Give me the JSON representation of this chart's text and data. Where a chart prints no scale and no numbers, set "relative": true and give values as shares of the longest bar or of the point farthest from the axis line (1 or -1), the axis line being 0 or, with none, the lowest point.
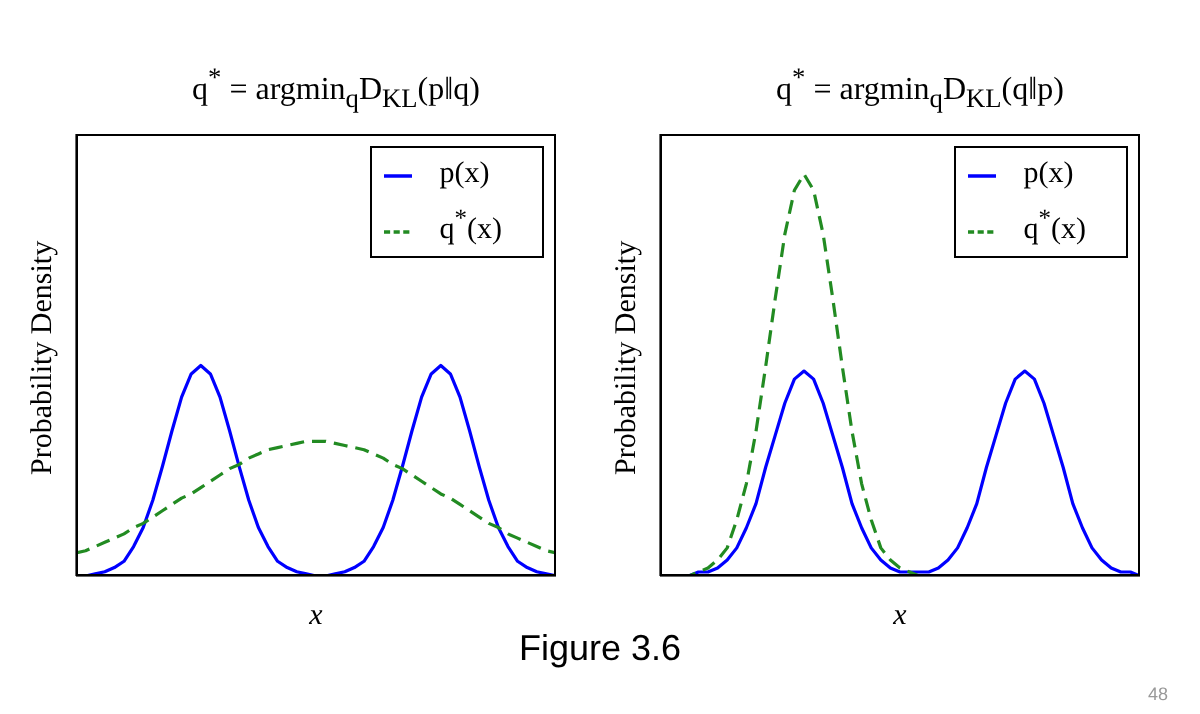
{
  "chart_data": [
    {
      "type": "line",
      "title": "q$^{*}$ = argmin$_{q}$D$_{KL}$(p‖q)",
      "xlabel": "x",
      "ylabel": "Probability Density",
      "relative": true,
      "legend": "top right",
      "categories": [
        null,
        null,
        null,
        null,
        null,
        null,
        null,
        null,
        null,
        null,
        null,
        null,
        null,
        null,
        null,
        null,
        null,
        null,
        null,
        null,
        null,
        null,
        null,
        null,
        null,
        null,
        null,
        null,
        null,
        null,
        null,
        null,
        null,
        null,
        null,
        null,
        null,
        null,
        null,
        null,
        null,
        null,
        null,
        null,
        null,
        null,
        null,
        null,
        null,
        null,
        null
      ],
      "series": [
        {
          "name": "p(x)",
          "color": "#0000ff",
          "line_style": "solid",
          "values": [
            0,
            0,
            0.01,
            0.02,
            0.04,
            0.07,
            0.14,
            0.23,
            0.36,
            0.52,
            0.69,
            0.85,
            0.96,
            1,
            0.96,
            0.85,
            0.69,
            0.52,
            0.36,
            0.23,
            0.14,
            0.07,
            0.04,
            0.02,
            0.01,
            0,
            0,
            0.01,
            0.02,
            0.04,
            0.07,
            0.14,
            0.23,
            0.36,
            0.52,
            0.69,
            0.85,
            0.96,
            1,
            0.96,
            0.85,
            0.69,
            0.52,
            0.36,
            0.23,
            0.14,
            0.07,
            0.04,
            0.02,
            0.01,
            0
          ]
        },
        {
          "name": "q$^{*}$(x)",
          "color": "#228b22",
          "line_style": "dashed",
          "values": [
            0.11,
            0.12,
            0.14,
            0.16,
            0.18,
            0.2,
            0.23,
            0.25,
            0.28,
            0.31,
            0.34,
            0.37,
            0.39,
            0.42,
            0.45,
            0.48,
            0.51,
            0.53,
            0.56,
            0.58,
            0.6,
            0.61,
            0.62,
            0.63,
            0.64,
            0.64,
            0.64,
            0.63,
            0.62,
            0.61,
            0.6,
            0.58,
            0.56,
            0.53,
            0.51,
            0.48,
            0.45,
            0.42,
            0.39,
            0.37,
            0.34,
            0.31,
            0.28,
            0.25,
            0.23,
            0.2,
            0.18,
            0.16,
            0.14,
            0.12,
            0.11
          ]
        }
      ]
    },
    {
      "type": "line",
      "title": "q$^{*}$ = argmin$_{q}$D$_{KL}$(q‖p)",
      "xlabel": "x",
      "ylabel": "Probability Density",
      "relative": true,
      "legend": "top right",
      "annotations": [
        "Figure 3.6",
        "48"
      ],
      "categories": [
        null,
        null,
        null,
        null,
        null,
        null,
        null,
        null,
        null,
        null,
        null,
        null,
        null,
        null,
        null,
        null,
        null,
        null,
        null,
        null,
        null,
        null,
        null,
        null,
        null,
        null,
        null,
        null,
        null,
        null,
        null,
        null,
        null,
        null,
        null,
        null,
        null,
        null,
        null,
        null,
        null,
        null,
        null,
        null,
        null,
        null,
        null,
        null,
        null,
        null,
        null
      ],
      "series": [
        {
          "name": "p(x)",
          "color": "#0000ff",
          "line_style": "solid",
          "values": [
            null,
            null,
            0,
            0,
            0.01,
            0.01,
            0.02,
            0.04,
            0.07,
            0.12,
            0.18,
            0.27,
            0.35,
            0.43,
            0.49,
            0.51,
            0.49,
            0.43,
            0.35,
            0.27,
            0.18,
            0.12,
            0.07,
            0.04,
            0.02,
            0.01,
            0.01,
            0.01,
            0.01,
            0.02,
            0.04,
            0.07,
            0.12,
            0.18,
            0.27,
            0.35,
            0.43,
            0.49,
            0.51,
            0.49,
            0.43,
            0.35,
            0.27,
            0.18,
            0.12,
            0.07,
            0.04,
            0.02,
            0.01,
            0.01,
            0
          ]
        },
        {
          "name": "q$^{*}$(x)",
          "color": "#228b22",
          "line_style": "dashed",
          "values": [
            0,
            0,
            0,
            0,
            0.01,
            0.02,
            0.04,
            0.07,
            0.14,
            0.23,
            0.36,
            0.52,
            0.69,
            0.85,
            0.96,
            1,
            0.96,
            0.85,
            0.69,
            0.52,
            0.36,
            0.23,
            0.14,
            0.07,
            0.04,
            0.02,
            0.01,
            0,
            0,
            0,
            null,
            null,
            null,
            null,
            null,
            null,
            null,
            null,
            null,
            null,
            null,
            null,
            null,
            null,
            null,
            null,
            null,
            null,
            null,
            null,
            null
          ]
        }
      ]
    }
  ]
}
